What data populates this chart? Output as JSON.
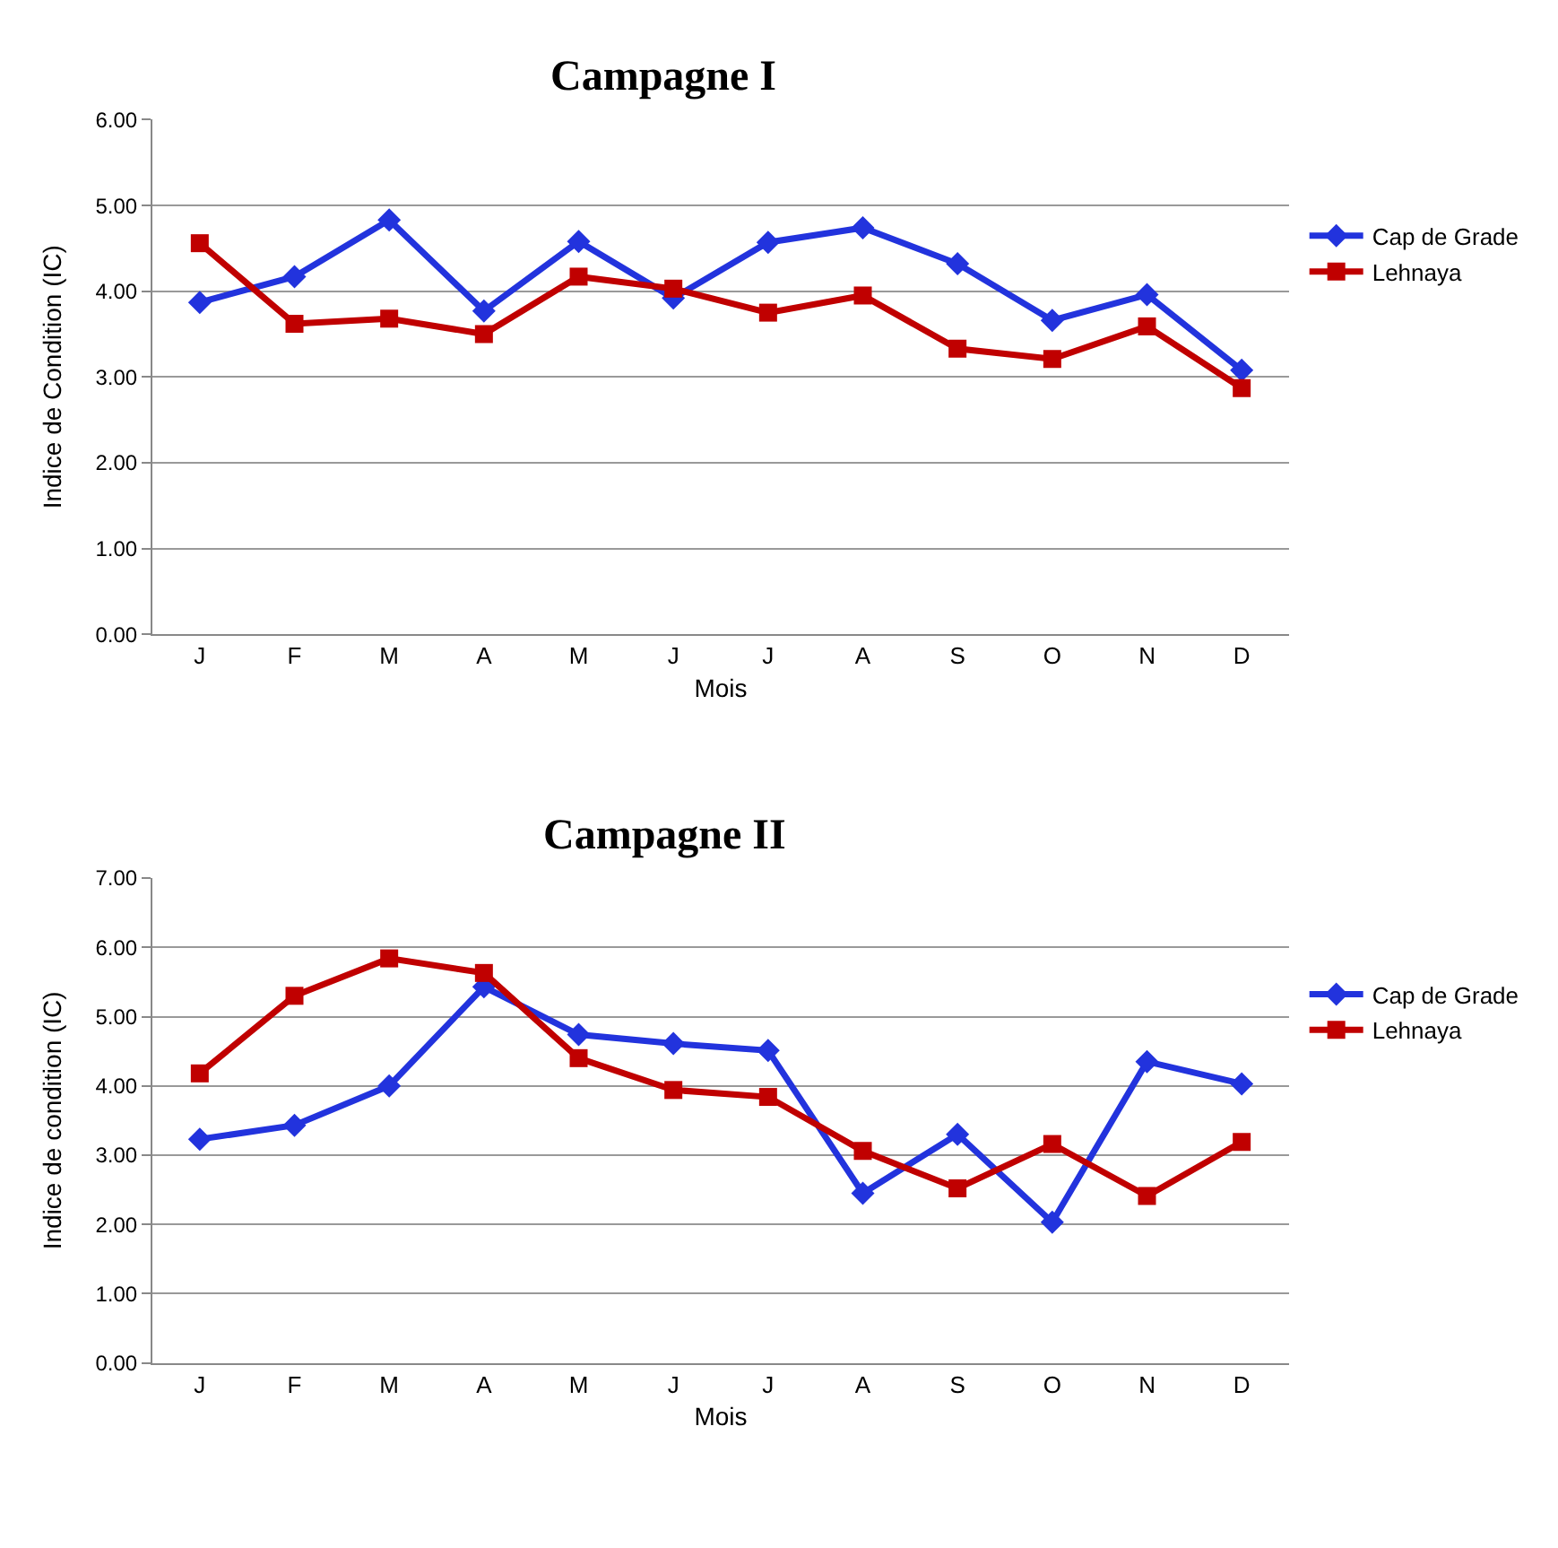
{
  "chart_data": [
    {
      "type": "line",
      "title": "Campagne I",
      "xlabel": "Mois",
      "ylabel": "Indice de Condition (IC)",
      "categories": [
        "J",
        "F",
        "M",
        "A",
        "M",
        "J",
        "J",
        "A",
        "S",
        "O",
        "N",
        "D"
      ],
      "series": [
        {
          "name": "Cap de Grade",
          "color": "#2233dd",
          "marker": "diamond",
          "values": [
            3.87,
            4.17,
            4.83,
            3.77,
            4.58,
            3.92,
            4.57,
            4.74,
            4.32,
            3.66,
            3.96,
            3.08
          ]
        },
        {
          "name": "Lehnaya",
          "color": "#c00000",
          "marker": "square",
          "values": [
            4.56,
            3.62,
            3.68,
            3.5,
            4.17,
            4.03,
            3.75,
            3.95,
            3.33,
            3.21,
            3.59,
            2.87
          ]
        }
      ],
      "ylim": [
        0,
        6
      ],
      "yticks": [
        {
          "value": 0,
          "label": "0.00"
        },
        {
          "value": 1,
          "label": "1.00"
        },
        {
          "value": 2,
          "label": "2.00"
        },
        {
          "value": 3,
          "label": "3.00"
        },
        {
          "value": 4,
          "label": "4.00"
        },
        {
          "value": 5,
          "label": "5.00"
        },
        {
          "value": 6,
          "label": "6.00"
        }
      ],
      "grid": "y",
      "legend": "right",
      "line_style": "solid"
    },
    {
      "type": "line",
      "title": "Campagne II",
      "xlabel": "Mois",
      "ylabel": "Indice de condition (IC)",
      "categories": [
        "J",
        "F",
        "M",
        "A",
        "M",
        "J",
        "J",
        "A",
        "S",
        "O",
        "N",
        "D"
      ],
      "series": [
        {
          "name": "Cap de Grade",
          "color": "#2233dd",
          "marker": "diamond",
          "values": [
            3.23,
            3.43,
            4.0,
            5.43,
            4.74,
            4.61,
            4.51,
            2.45,
            3.3,
            2.03,
            4.35,
            4.03
          ]
        },
        {
          "name": "Lehnaya",
          "color": "#c00000",
          "marker": "square",
          "values": [
            4.18,
            5.3,
            5.84,
            5.63,
            4.4,
            3.94,
            3.84,
            3.06,
            2.52,
            3.16,
            2.41,
            3.19
          ]
        }
      ],
      "ylim": [
        0,
        7
      ],
      "yticks": [
        {
          "value": 0,
          "label": "0.00"
        },
        {
          "value": 1,
          "label": "1.00"
        },
        {
          "value": 2,
          "label": "2.00"
        },
        {
          "value": 3,
          "label": "3.00"
        },
        {
          "value": 4,
          "label": "4.00"
        },
        {
          "value": 5,
          "label": "5.00"
        },
        {
          "value": 6,
          "label": "6.00"
        },
        {
          "value": 7,
          "label": "7.00"
        }
      ],
      "grid": "y",
      "legend": "right",
      "line_style": "solid"
    }
  ]
}
